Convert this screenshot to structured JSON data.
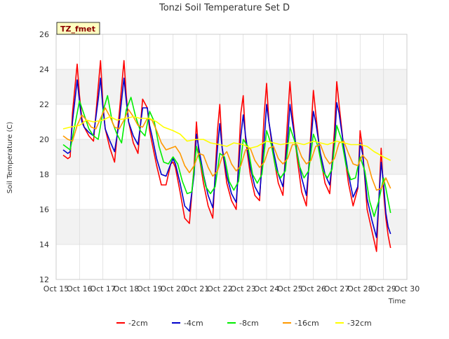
{
  "chart_data": {
    "type": "line",
    "title": "Tonzi Soil Temperature Set D",
    "xlabel": "Time",
    "ylabel": "Soil Temperature (C)",
    "site_tag": "TZ_fmet",
    "xlim": [
      15,
      30
    ],
    "ylim": [
      12,
      26
    ],
    "x_ticks": [
      15,
      16,
      17,
      18,
      19,
      20,
      21,
      22,
      23,
      24,
      25,
      26,
      27,
      28,
      29,
      30
    ],
    "x_tick_labels": [
      "Oct 15",
      "Oct 16",
      "Oct 17",
      "Oct 18",
      "Oct 19",
      "Oct 20",
      "Oct 21",
      "Oct 22",
      "Oct 23",
      "Oct 24",
      "Oct 25",
      "Oct 26",
      "Oct 27",
      "Oct 28",
      "Oct 29",
      "Oct 30"
    ],
    "y_ticks": [
      12,
      14,
      16,
      18,
      20,
      22,
      24,
      26
    ],
    "y_tick_labels": [
      "12",
      "14",
      "16",
      "18",
      "20",
      "22",
      "24",
      "26"
    ],
    "grid": true,
    "banded_background": true,
    "legend_position": "bottom",
    "series": [
      {
        "name": "-2cm",
        "color": "#ff0000",
        "x": [
          15.3,
          15.5,
          15.6,
          15.7,
          15.9,
          16.0,
          16.1,
          16.2,
          16.4,
          16.6,
          16.8,
          16.9,
          17.0,
          17.1,
          17.3,
          17.5,
          17.7,
          17.9,
          18.0,
          18.1,
          18.3,
          18.5,
          18.7,
          18.9,
          19.0,
          19.1,
          19.3,
          19.5,
          19.7,
          19.9,
          20.0,
          20.1,
          20.3,
          20.5,
          20.7,
          20.9,
          21.0,
          21.1,
          21.3,
          21.5,
          21.7,
          21.9,
          22.0,
          22.1,
          22.3,
          22.5,
          22.7,
          22.9,
          23.0,
          23.1,
          23.3,
          23.5,
          23.7,
          23.9,
          24.0,
          24.1,
          24.3,
          24.5,
          24.7,
          24.9,
          25.0,
          25.1,
          25.3,
          25.5,
          25.7,
          25.9,
          26.0,
          26.1,
          26.3,
          26.5,
          26.7,
          26.9,
          27.0,
          27.1,
          27.3,
          27.5,
          27.7,
          27.9,
          28.0,
          28.1,
          28.3,
          28.5,
          28.7,
          28.8,
          28.9,
          29.0,
          29.1,
          29.2,
          29.3
        ],
        "y": [
          19.1,
          18.9,
          19.0,
          21.5,
          24.3,
          22.5,
          21.2,
          20.7,
          20.2,
          19.9,
          23.0,
          24.5,
          22.0,
          20.6,
          19.5,
          18.7,
          21.5,
          24.5,
          22.5,
          21.0,
          19.8,
          19.2,
          22.3,
          21.8,
          20.5,
          19.8,
          18.5,
          17.4,
          17.4,
          18.6,
          18.7,
          18.4,
          17.0,
          15.5,
          15.2,
          18.5,
          21.0,
          19.2,
          17.5,
          16.2,
          15.5,
          20.5,
          22.0,
          19.5,
          17.5,
          16.5,
          16.0,
          21.5,
          22.5,
          20.0,
          18.0,
          16.8,
          16.5,
          21.5,
          23.2,
          21.0,
          19.0,
          17.5,
          16.8,
          21.2,
          23.3,
          21.5,
          19.0,
          17.0,
          16.2,
          20.5,
          22.8,
          21.5,
          19.0,
          17.5,
          16.9,
          20.5,
          23.3,
          22.0,
          19.5,
          17.5,
          16.2,
          17.2,
          20.5,
          19.5,
          16.0,
          14.8,
          13.6,
          16.5,
          19.5,
          17.0,
          15.5,
          14.5,
          13.8
        ]
      },
      {
        "name": "-4cm",
        "color": "#0000cc",
        "x": [
          15.3,
          15.5,
          15.6,
          15.7,
          15.9,
          16.0,
          16.1,
          16.2,
          16.4,
          16.6,
          16.8,
          16.9,
          17.0,
          17.1,
          17.3,
          17.5,
          17.7,
          17.9,
          18.0,
          18.1,
          18.3,
          18.5,
          18.7,
          18.9,
          19.0,
          19.1,
          19.3,
          19.5,
          19.7,
          19.9,
          20.0,
          20.1,
          20.3,
          20.5,
          20.7,
          20.9,
          21.0,
          21.1,
          21.3,
          21.5,
          21.7,
          21.9,
          22.0,
          22.1,
          22.3,
          22.5,
          22.7,
          22.9,
          23.0,
          23.1,
          23.3,
          23.5,
          23.7,
          23.9,
          24.0,
          24.1,
          24.3,
          24.5,
          24.7,
          24.9,
          25.0,
          25.1,
          25.3,
          25.5,
          25.7,
          25.9,
          26.0,
          26.1,
          26.3,
          26.5,
          26.7,
          26.9,
          27.0,
          27.1,
          27.3,
          27.5,
          27.7,
          27.9,
          28.0,
          28.1,
          28.3,
          28.5,
          28.7,
          28.8,
          28.9,
          29.0,
          29.1,
          29.2,
          29.3
        ],
        "y": [
          19.4,
          19.2,
          19.3,
          21.0,
          23.4,
          22.2,
          21.0,
          20.7,
          20.4,
          20.2,
          22.3,
          23.5,
          21.8,
          20.6,
          19.9,
          19.3,
          21.0,
          23.5,
          22.2,
          21.0,
          20.2,
          19.7,
          21.8,
          21.8,
          20.8,
          20.2,
          18.9,
          18.0,
          17.9,
          18.6,
          18.9,
          18.6,
          17.5,
          16.2,
          15.9,
          18.0,
          20.3,
          19.5,
          18.0,
          16.8,
          16.1,
          19.5,
          20.9,
          19.5,
          17.9,
          16.9,
          16.4,
          20.2,
          21.4,
          20.2,
          18.4,
          17.3,
          16.8,
          20.0,
          22.0,
          21.0,
          19.3,
          18.0,
          17.3,
          20.0,
          22.0,
          21.0,
          19.3,
          17.8,
          16.8,
          19.9,
          21.6,
          21.0,
          19.2,
          18.0,
          17.4,
          19.8,
          22.1,
          21.5,
          19.6,
          18.0,
          16.7,
          17.3,
          19.8,
          19.2,
          16.6,
          15.4,
          14.4,
          16.5,
          18.7,
          17.5,
          15.8,
          15.0,
          14.6
        ]
      },
      {
        "name": "-8cm",
        "color": "#00ee00",
        "x": [
          15.3,
          15.5,
          15.6,
          15.8,
          16.0,
          16.2,
          16.4,
          16.6,
          16.8,
          17.0,
          17.2,
          17.4,
          17.6,
          17.8,
          18.0,
          18.2,
          18.4,
          18.6,
          18.8,
          19.0,
          19.2,
          19.4,
          19.6,
          19.8,
          20.0,
          20.2,
          20.4,
          20.6,
          20.8,
          21.0,
          21.2,
          21.4,
          21.6,
          21.8,
          22.0,
          22.2,
          22.4,
          22.6,
          22.8,
          23.0,
          23.2,
          23.4,
          23.6,
          23.8,
          24.0,
          24.2,
          24.4,
          24.6,
          24.8,
          25.0,
          25.2,
          25.4,
          25.6,
          25.8,
          26.0,
          26.2,
          26.4,
          26.6,
          26.8,
          27.0,
          27.2,
          27.4,
          27.6,
          27.8,
          28.0,
          28.2,
          28.4,
          28.6,
          28.8,
          29.0,
          29.1,
          29.2,
          29.3
        ],
        "y": [
          19.7,
          19.5,
          19.4,
          20.8,
          22.2,
          21.4,
          20.6,
          20.2,
          20.0,
          21.6,
          22.5,
          21.0,
          20.3,
          19.8,
          21.7,
          22.4,
          21.3,
          20.5,
          20.2,
          21.6,
          21.0,
          19.6,
          18.7,
          18.6,
          19.0,
          18.6,
          17.6,
          16.9,
          17.0,
          19.6,
          18.5,
          17.3,
          16.9,
          17.3,
          19.2,
          19.0,
          17.6,
          17.1,
          17.6,
          20.0,
          19.6,
          18.0,
          17.5,
          18.0,
          20.5,
          19.7,
          18.3,
          17.8,
          18.2,
          20.7,
          19.9,
          18.5,
          17.8,
          18.2,
          20.3,
          19.6,
          18.2,
          17.8,
          18.3,
          20.8,
          20.0,
          18.5,
          17.7,
          17.8,
          19.0,
          18.2,
          16.5,
          15.6,
          16.5,
          17.8,
          17.2,
          16.5,
          15.8
        ]
      },
      {
        "name": "-16cm",
        "color": "#ff9900",
        "x": [
          15.3,
          15.5,
          15.7,
          15.9,
          16.1,
          16.3,
          16.5,
          16.7,
          16.9,
          17.1,
          17.3,
          17.5,
          17.7,
          17.9,
          18.1,
          18.3,
          18.5,
          18.7,
          18.9,
          19.1,
          19.3,
          19.5,
          19.7,
          19.9,
          20.1,
          20.3,
          20.5,
          20.7,
          20.9,
          21.1,
          21.3,
          21.5,
          21.7,
          21.9,
          22.1,
          22.3,
          22.5,
          22.7,
          22.9,
          23.1,
          23.3,
          23.5,
          23.7,
          23.9,
          24.1,
          24.3,
          24.5,
          24.7,
          24.9,
          25.1,
          25.3,
          25.5,
          25.7,
          25.9,
          26.1,
          26.3,
          26.5,
          26.7,
          26.9,
          27.1,
          27.3,
          27.5,
          27.7,
          27.9,
          28.1,
          28.3,
          28.5,
          28.7,
          28.9,
          29.1,
          29.3
        ],
        "y": [
          20.2,
          20.0,
          19.9,
          20.8,
          21.4,
          21.1,
          20.7,
          20.6,
          21.2,
          21.8,
          21.3,
          20.7,
          20.6,
          21.1,
          21.7,
          21.3,
          20.8,
          20.7,
          21.2,
          21.1,
          20.5,
          19.8,
          19.4,
          19.5,
          19.6,
          19.2,
          18.5,
          18.1,
          18.5,
          19.2,
          19.1,
          18.4,
          17.9,
          18.2,
          19.0,
          19.3,
          18.6,
          18.2,
          18.5,
          19.4,
          19.5,
          18.8,
          18.4,
          18.7,
          19.5,
          19.6,
          18.9,
          18.6,
          18.9,
          19.7,
          19.7,
          19.0,
          18.6,
          18.8,
          19.6,
          19.7,
          19.0,
          18.6,
          18.9,
          19.8,
          19.9,
          19.2,
          18.6,
          18.5,
          19.1,
          18.8,
          17.8,
          17.1,
          17.2,
          17.8,
          17.2
        ]
      },
      {
        "name": "-32cm",
        "color": "#ffff00",
        "x": [
          15.3,
          15.6,
          16.0,
          16.3,
          16.6,
          17.0,
          17.3,
          17.6,
          18.0,
          18.3,
          18.6,
          19.0,
          19.3,
          19.6,
          20.0,
          20.3,
          20.6,
          21.0,
          21.3,
          21.6,
          22.0,
          22.3,
          22.6,
          23.0,
          23.3,
          23.6,
          24.0,
          24.3,
          24.6,
          25.0,
          25.3,
          25.6,
          26.0,
          26.3,
          26.6,
          27.0,
          27.3,
          27.6,
          28.0,
          28.3,
          28.6,
          29.0,
          29.3
        ],
        "y": [
          20.6,
          20.7,
          20.8,
          21.1,
          21.0,
          21.1,
          21.3,
          21.1,
          21.2,
          21.3,
          21.2,
          21.2,
          21.0,
          20.7,
          20.5,
          20.3,
          19.9,
          20.0,
          20.0,
          19.8,
          19.7,
          19.6,
          19.8,
          19.7,
          19.5,
          19.6,
          19.9,
          19.8,
          19.7,
          19.8,
          19.8,
          19.7,
          19.9,
          19.8,
          19.7,
          19.9,
          19.8,
          19.7,
          19.7,
          19.6,
          19.3,
          19.0,
          18.8
        ]
      }
    ]
  }
}
